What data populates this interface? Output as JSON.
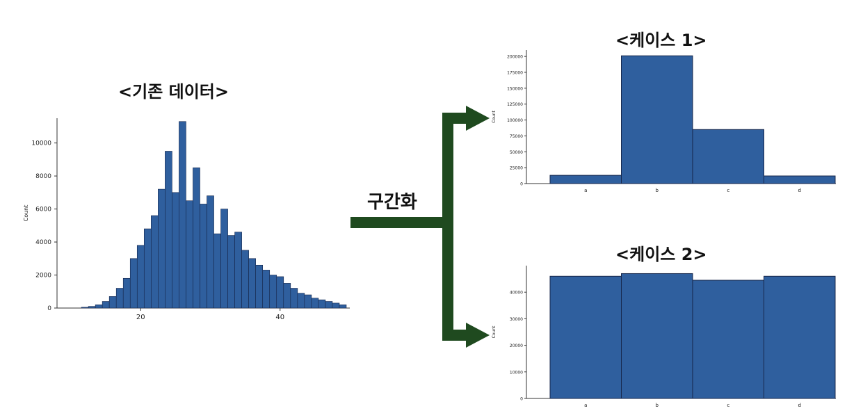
{
  "titles": {
    "original": "<기존 데이터>",
    "case1": "<케이스 1>",
    "case2": "<케이스 2>"
  },
  "arrow_label": "구간화",
  "colors": {
    "bar": "#2f5f9e",
    "bar_edge": "#16264a",
    "arrow": "#1f4a1f"
  },
  "chart_data": [
    {
      "type": "bar",
      "title": "<기존 데이터>",
      "ylabel": "Count",
      "xlim": [
        8,
        50
      ],
      "ylim": [
        0,
        11500
      ],
      "x_ticks": [
        20,
        40
      ],
      "y_ticks": [
        0,
        2000,
        4000,
        6000,
        8000,
        10000
      ],
      "x": [
        12,
        13,
        14,
        15,
        16,
        17,
        18,
        19,
        20,
        21,
        22,
        23,
        24,
        25,
        26,
        27,
        28,
        29,
        30,
        31,
        32,
        33,
        34,
        35,
        36,
        37,
        38,
        39,
        40,
        41,
        42,
        43,
        44,
        45,
        46,
        47,
        48,
        49
      ],
      "values": [
        50,
        100,
        200,
        400,
        700,
        1200,
        1800,
        3000,
        3800,
        4800,
        5600,
        7200,
        9500,
        7000,
        11300,
        6500,
        8500,
        6300,
        6800,
        4500,
        6000,
        4400,
        4600,
        3500,
        3000,
        2600,
        2300,
        2000,
        1900,
        1500,
        1200,
        900,
        800,
        600,
        500,
        400,
        300,
        200
      ]
    },
    {
      "type": "bar",
      "title": "<케이스 1>",
      "ylabel": "Count",
      "categories": [
        "a",
        "b",
        "c",
        "d"
      ],
      "values": [
        13000,
        201000,
        85000,
        12000
      ],
      "y_ticks": [
        0,
        25000,
        50000,
        75000,
        100000,
        125000,
        150000,
        175000,
        200000
      ],
      "ylim": [
        0,
        210000
      ]
    },
    {
      "type": "bar",
      "title": "<케이스 2>",
      "ylabel": "Count",
      "categories": [
        "a",
        "b",
        "c",
        "d"
      ],
      "values": [
        46000,
        47000,
        44500,
        46000
      ],
      "y_ticks": [
        0,
        10000,
        20000,
        30000,
        40000
      ],
      "ylim": [
        0,
        50000
      ]
    }
  ]
}
